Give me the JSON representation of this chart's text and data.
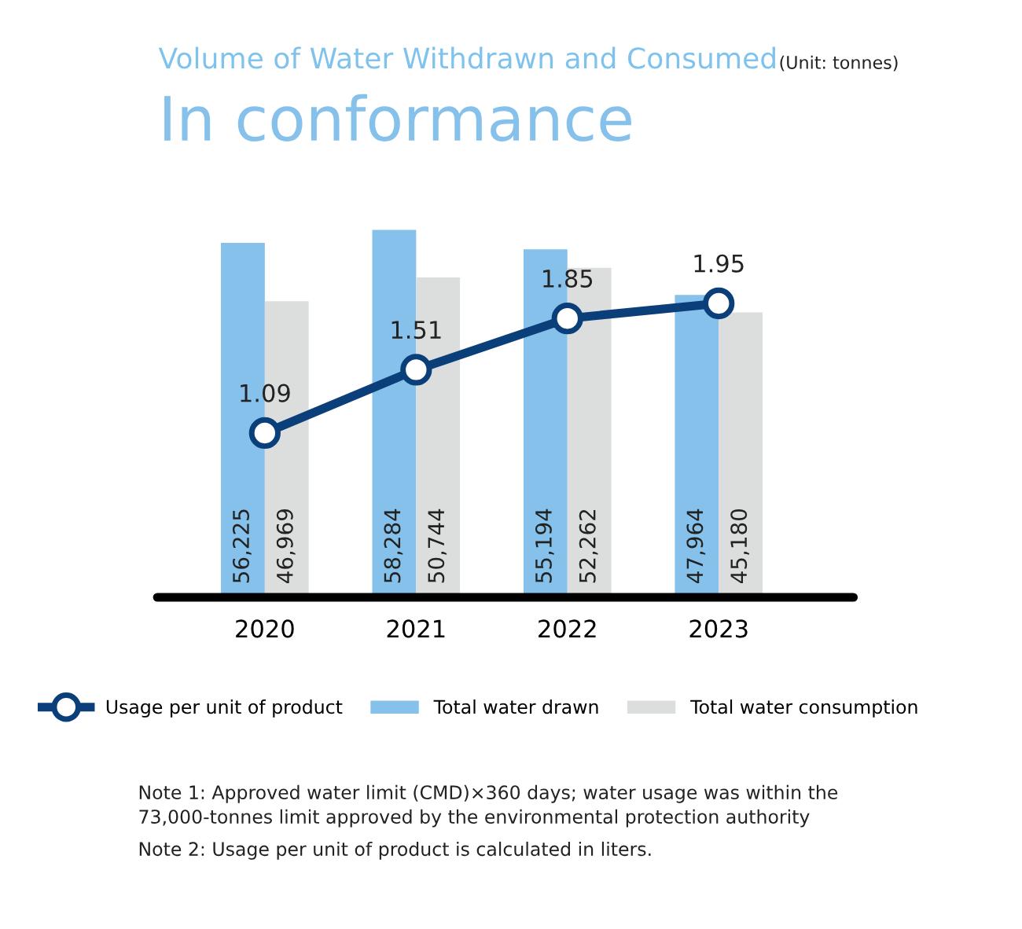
{
  "chart_data": {
    "type": "bar",
    "title": "Volume of Water Withdrawn and Consumed",
    "subtitle": "In conformance",
    "annotations": [
      "(Unit: tonnes)",
      "Note 1: Approved water limit (CMD)×360 days; water usage was within the\n73,000-tonnes limit approved by the environmental protection authority",
      "Note 2: Usage per unit of product is calculated in liters."
    ],
    "categories": [
      "2020",
      "2021",
      "2022",
      "2023"
    ],
    "series": [
      {
        "name": "Usage per unit of product",
        "type": "line",
        "axis": "y2",
        "color": "#0b3f7a",
        "values": [
          1.09,
          1.51,
          1.85,
          1.95
        ]
      },
      {
        "name": "Total water drawn",
        "color": "#85c1ea",
        "values": [
          56225,
          58284,
          55194,
          47964
        ],
        "value_labels": [
          "56,225",
          "58,284",
          "55,194",
          "47,964"
        ]
      },
      {
        "name": "Total water consumption",
        "color": "#dcdddd",
        "values": [
          46969,
          50744,
          52262,
          45180
        ],
        "value_labels": [
          "46,969",
          "50,744",
          "52,262",
          "45,180"
        ]
      }
    ],
    "tick_labels": "x",
    "data_labels": true,
    "marker": "circle",
    "legend": "bottom"
  }
}
